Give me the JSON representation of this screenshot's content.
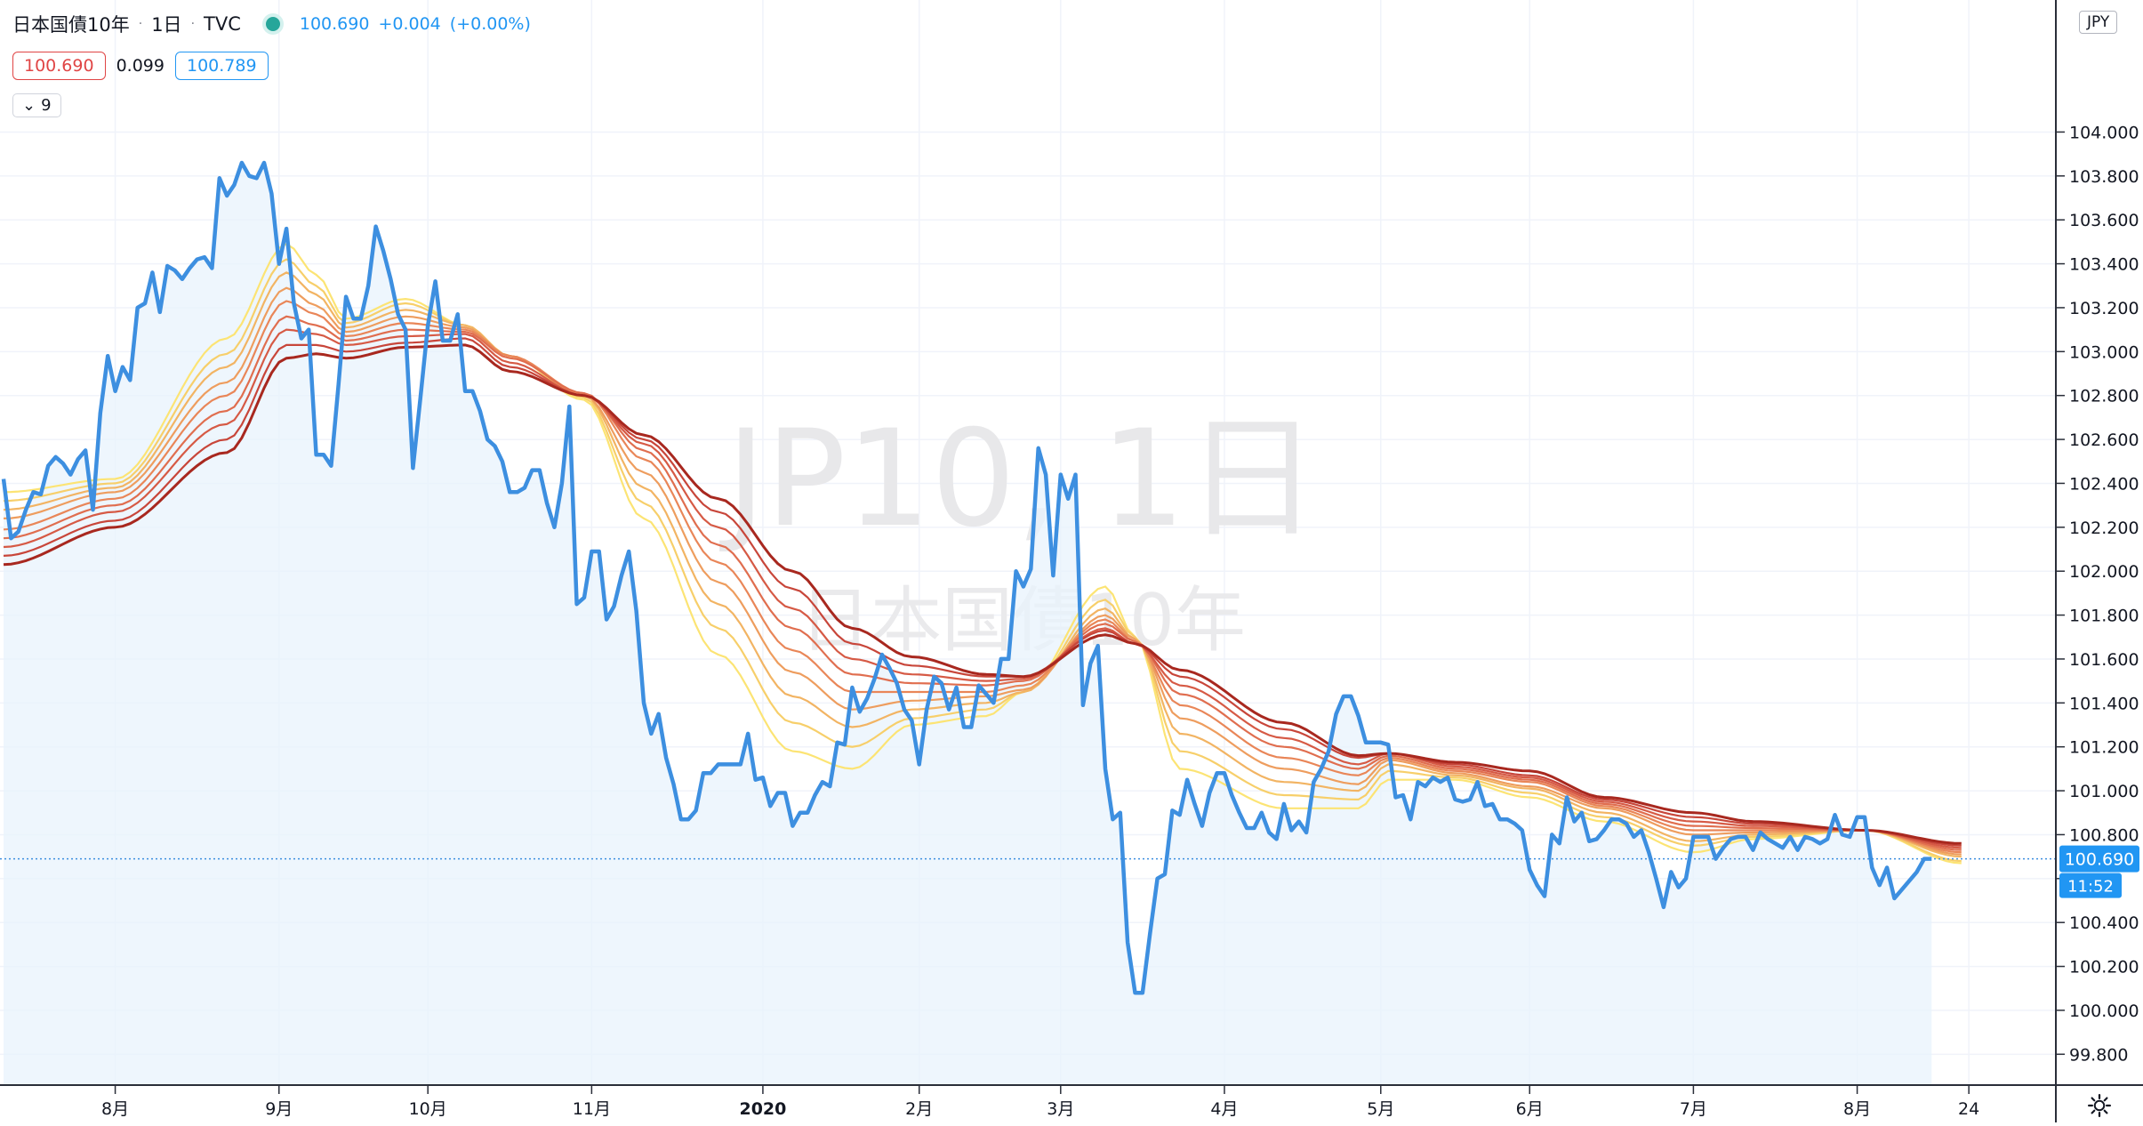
{
  "header": {
    "symbol_name": "日本国債10年",
    "interval": "1日",
    "exchange": "TVC",
    "last_price": "100.690",
    "change": "+0.004",
    "change_pct": "(+0.00%)",
    "bid": "100.690",
    "spread": "0.099",
    "ask": "100.789",
    "indicator_count": "9",
    "currency": "JPY"
  },
  "watermark": {
    "line1": "JP10, 1日",
    "line2": "日本国債10年"
  },
  "price_scale_labels": {
    "last": "100.690",
    "countdown": "11:52"
  },
  "icons": {
    "settings": "gear-icon",
    "collapse": "chevron-down-icon",
    "status": "market-open-dot"
  },
  "colors": {
    "price_line": "#3d8fe0",
    "area_fill": "#e8f3fc",
    "ma_ramp": [
      "#fce474",
      "#f7cf6a",
      "#f2b463",
      "#ee9d5e",
      "#e98658",
      "#e06e4f",
      "#d65a45",
      "#c8463a",
      "#a8281f"
    ]
  },
  "chart_data": {
    "type": "line",
    "ylim": [
      99.7,
      104.5
    ],
    "yticks": [
      99.8,
      100.0,
      100.2,
      100.4,
      100.6,
      100.8,
      101.0,
      101.2,
      101.4,
      101.6,
      101.8,
      102.0,
      102.2,
      102.4,
      102.6,
      102.8,
      103.0,
      103.2,
      103.4,
      103.6,
      103.8,
      104.0
    ],
    "ytick_labels": [
      "99.800",
      "100.000",
      "100.200",
      "100.400",
      "",
      "100.800",
      "101.000",
      "101.200",
      "101.400",
      "101.600",
      "101.800",
      "102.000",
      "102.200",
      "102.400",
      "102.600",
      "102.800",
      "103.000",
      "103.200",
      "103.400",
      "103.600",
      "103.800",
      "104.000"
    ],
    "xticks": [
      {
        "label": "8月",
        "t": 15
      },
      {
        "label": "9月",
        "t": 37
      },
      {
        "label": "10月",
        "t": 57
      },
      {
        "label": "11月",
        "t": 79
      },
      {
        "label": "2020",
        "t": 102
      },
      {
        "label": "2月",
        "t": 123
      },
      {
        "label": "3月",
        "t": 142
      },
      {
        "label": "4月",
        "t": 164
      },
      {
        "label": "5月",
        "t": 185
      },
      {
        "label": "6月",
        "t": 205
      },
      {
        "label": "7月",
        "t": 227
      },
      {
        "label": "8月",
        "t": 249
      },
      {
        "label": "24",
        "t": 264
      }
    ],
    "x_range": [
      0,
      270
    ],
    "x_last": 263,
    "last_price": 100.69,
    "series": [
      {
        "name": "",
        "values": [
          102.42,
          102.15,
          102.18,
          102.28,
          102.36,
          102.35,
          102.48,
          102.52,
          102.49,
          102.44,
          102.51,
          102.55,
          102.28,
          102.72,
          102.98,
          102.82,
          102.93,
          102.87,
          103.2,
          103.22,
          103.36,
          103.18,
          103.39,
          103.37,
          103.33,
          103.38,
          103.42,
          103.43,
          103.38,
          103.79,
          103.71,
          103.76,
          103.86,
          103.8,
          103.79,
          103.86,
          103.72,
          103.4,
          103.56,
          103.22,
          103.06,
          103.1,
          102.53,
          102.53,
          102.48,
          102.85,
          103.25,
          103.15,
          103.15,
          103.3,
          103.57,
          103.46,
          103.33,
          103.17,
          103.1,
          102.47,
          102.79,
          103.12,
          103.32,
          103.05,
          103.05,
          103.17,
          102.82,
          102.82,
          102.73,
          102.6,
          102.57,
          102.5,
          102.36,
          102.36,
          102.38,
          102.46,
          102.46,
          102.31,
          102.2,
          102.4,
          102.75,
          101.85,
          101.88,
          102.09,
          102.09,
          101.78,
          101.84,
          101.98,
          102.09,
          101.82,
          101.4,
          101.26,
          101.35,
          101.15,
          101.03,
          100.87,
          100.87,
          100.91,
          101.08,
          101.08,
          101.12,
          101.12,
          101.12,
          101.12,
          101.26,
          101.05,
          101.06,
          100.93,
          100.99,
          100.99,
          100.84,
          100.9,
          100.9,
          100.98,
          101.04,
          101.02,
          101.22,
          101.21,
          101.47,
          101.36,
          101.42,
          101.51,
          101.62,
          101.56,
          101.49,
          101.37,
          101.32,
          101.12,
          101.37,
          101.52,
          101.49,
          101.37,
          101.47,
          101.29,
          101.29,
          101.48,
          101.44,
          101.4,
          101.6,
          101.6,
          102.0,
          101.93,
          102.01,
          102.56,
          102.44,
          101.98,
          102.44,
          102.33,
          102.44,
          101.39,
          101.58,
          101.66,
          101.1,
          100.87,
          100.9,
          100.31,
          100.08,
          100.08,
          100.35,
          100.6,
          100.62,
          100.91,
          100.89,
          101.05,
          100.94,
          100.84,
          100.99,
          101.08,
          101.08,
          100.98,
          100.9,
          100.83,
          100.83,
          100.9,
          100.81,
          100.78,
          100.94,
          100.82,
          100.86,
          100.81,
          101.04,
          101.1,
          101.18,
          101.35,
          101.43,
          101.43,
          101.34,
          101.22,
          101.22,
          101.22,
          101.21,
          100.97,
          100.98,
          100.87,
          101.04,
          101.02,
          101.06,
          101.04,
          101.06,
          100.96,
          100.95,
          100.96,
          101.04,
          100.93,
          100.94,
          100.87,
          100.87,
          100.85,
          100.82,
          100.64,
          100.57,
          100.52,
          100.8,
          100.76,
          100.97,
          100.86,
          100.9,
          100.77,
          100.78,
          100.82,
          100.87,
          100.87,
          100.85,
          100.79,
          100.82,
          100.72,
          100.6,
          100.47,
          100.63,
          100.56,
          100.6,
          100.79,
          100.79,
          100.79,
          100.69,
          100.74,
          100.78,
          100.79,
          100.79,
          100.73,
          100.81,
          100.78,
          100.76,
          100.74,
          100.79,
          100.73,
          100.79,
          100.78,
          100.76,
          100.78,
          100.89,
          100.8,
          100.79,
          100.88,
          100.88,
          100.65,
          100.57,
          100.65,
          100.51,
          100.55,
          100.59,
          100.63,
          100.69,
          100.69
        ]
      }
    ],
    "ma_ribbon": {
      "count": 9,
      "anchors": [
        {
          "t": 0,
          "values": [
            102.36,
            102.32,
            102.28,
            102.24,
            102.19,
            102.15,
            102.11,
            102.07,
            102.03
          ]
        },
        {
          "t": 15,
          "values": [
            102.42,
            102.4,
            102.38,
            102.36,
            102.33,
            102.3,
            102.27,
            102.23,
            102.2
          ]
        },
        {
          "t": 30,
          "values": [
            103.06,
            102.99,
            102.93,
            102.86,
            102.8,
            102.73,
            102.67,
            102.6,
            102.54
          ]
        },
        {
          "t": 38,
          "values": [
            103.49,
            103.42,
            103.36,
            103.29,
            103.23,
            103.16,
            103.1,
            103.03,
            102.97
          ]
        },
        {
          "t": 42,
          "values": [
            103.35,
            103.3,
            103.26,
            103.21,
            103.17,
            103.12,
            103.08,
            103.03,
            102.99
          ]
        },
        {
          "t": 46,
          "values": [
            103.15,
            103.13,
            103.11,
            103.09,
            103.07,
            103.05,
            103.03,
            103.0,
            102.97
          ]
        },
        {
          "t": 54,
          "values": [
            103.24,
            103.22,
            103.19,
            103.16,
            103.13,
            103.1,
            103.07,
            103.04,
            103.02
          ]
        },
        {
          "t": 62,
          "values": [
            103.12,
            103.12,
            103.12,
            103.11,
            103.1,
            103.09,
            103.08,
            103.06,
            103.03
          ]
        },
        {
          "t": 68,
          "values": [
            102.98,
            102.98,
            102.98,
            102.98,
            102.98,
            102.97,
            102.95,
            102.93,
            102.91
          ]
        },
        {
          "t": 78,
          "values": [
            102.78,
            102.79,
            102.8,
            102.8,
            102.81,
            102.81,
            102.8,
            102.8,
            102.8
          ]
        },
        {
          "t": 86,
          "values": [
            102.24,
            102.31,
            102.38,
            102.45,
            102.51,
            102.55,
            102.58,
            102.6,
            102.62
          ]
        },
        {
          "t": 96,
          "values": [
            101.62,
            101.74,
            101.85,
            101.95,
            102.04,
            102.12,
            102.2,
            102.27,
            102.33
          ]
        },
        {
          "t": 106,
          "values": [
            101.18,
            101.31,
            101.43,
            101.54,
            101.64,
            101.74,
            101.83,
            101.92,
            102.0
          ]
        },
        {
          "t": 114,
          "values": [
            101.1,
            101.2,
            101.29,
            101.37,
            101.45,
            101.53,
            101.6,
            101.67,
            101.74
          ]
        },
        {
          "t": 122,
          "values": [
            101.3,
            101.33,
            101.37,
            101.41,
            101.45,
            101.49,
            101.53,
            101.57,
            101.61
          ]
        },
        {
          "t": 132,
          "values": [
            101.34,
            101.37,
            101.4,
            101.43,
            101.45,
            101.48,
            101.5,
            101.52,
            101.53
          ]
        },
        {
          "t": 137,
          "values": [
            101.45,
            101.45,
            101.45,
            101.46,
            101.48,
            101.5,
            101.51,
            101.52,
            101.52
          ]
        },
        {
          "t": 148,
          "values": [
            101.93,
            101.87,
            101.83,
            101.8,
            101.78,
            101.76,
            101.74,
            101.73,
            101.71
          ]
        },
        {
          "t": 152,
          "values": [
            101.7,
            101.7,
            101.69,
            101.69,
            101.68,
            101.68,
            101.67,
            101.67,
            101.67
          ]
        },
        {
          "t": 158,
          "values": [
            101.1,
            101.18,
            101.26,
            101.33,
            101.39,
            101.44,
            101.48,
            101.52,
            101.55
          ]
        },
        {
          "t": 172,
          "values": [
            100.92,
            100.98,
            101.04,
            101.1,
            101.15,
            101.2,
            101.24,
            101.28,
            101.31
          ]
        },
        {
          "t": 182,
          "values": [
            100.92,
            100.96,
            101.0,
            101.03,
            101.07,
            101.1,
            101.12,
            101.15,
            101.16
          ]
        },
        {
          "t": 186,
          "values": [
            101.05,
            101.09,
            101.12,
            101.14,
            101.15,
            101.16,
            101.17,
            101.17,
            101.17
          ]
        },
        {
          "t": 195,
          "values": [
            101.05,
            101.06,
            101.07,
            101.08,
            101.09,
            101.1,
            101.11,
            101.12,
            101.13
          ]
        },
        {
          "t": 205,
          "values": [
            100.97,
            100.99,
            101.01,
            101.02,
            101.04,
            101.05,
            101.06,
            101.07,
            101.09
          ]
        },
        {
          "t": 215,
          "values": [
            100.86,
            100.88,
            100.9,
            100.92,
            100.93,
            100.94,
            100.95,
            100.96,
            100.97
          ]
        },
        {
          "t": 227,
          "values": [
            100.72,
            100.75,
            100.77,
            100.8,
            100.82,
            100.84,
            100.86,
            100.88,
            100.9
          ]
        },
        {
          "t": 235,
          "values": [
            100.78,
            100.79,
            100.8,
            100.81,
            100.82,
            100.83,
            100.84,
            100.85,
            100.86
          ]
        },
        {
          "t": 250,
          "values": [
            100.82,
            100.82,
            100.82,
            100.82,
            100.82,
            100.82,
            100.82,
            100.82,
            100.82
          ]
        },
        {
          "t": 263,
          "values": [
            100.67,
            100.68,
            100.7,
            100.71,
            100.72,
            100.73,
            100.74,
            100.75,
            100.76
          ]
        }
      ]
    }
  }
}
